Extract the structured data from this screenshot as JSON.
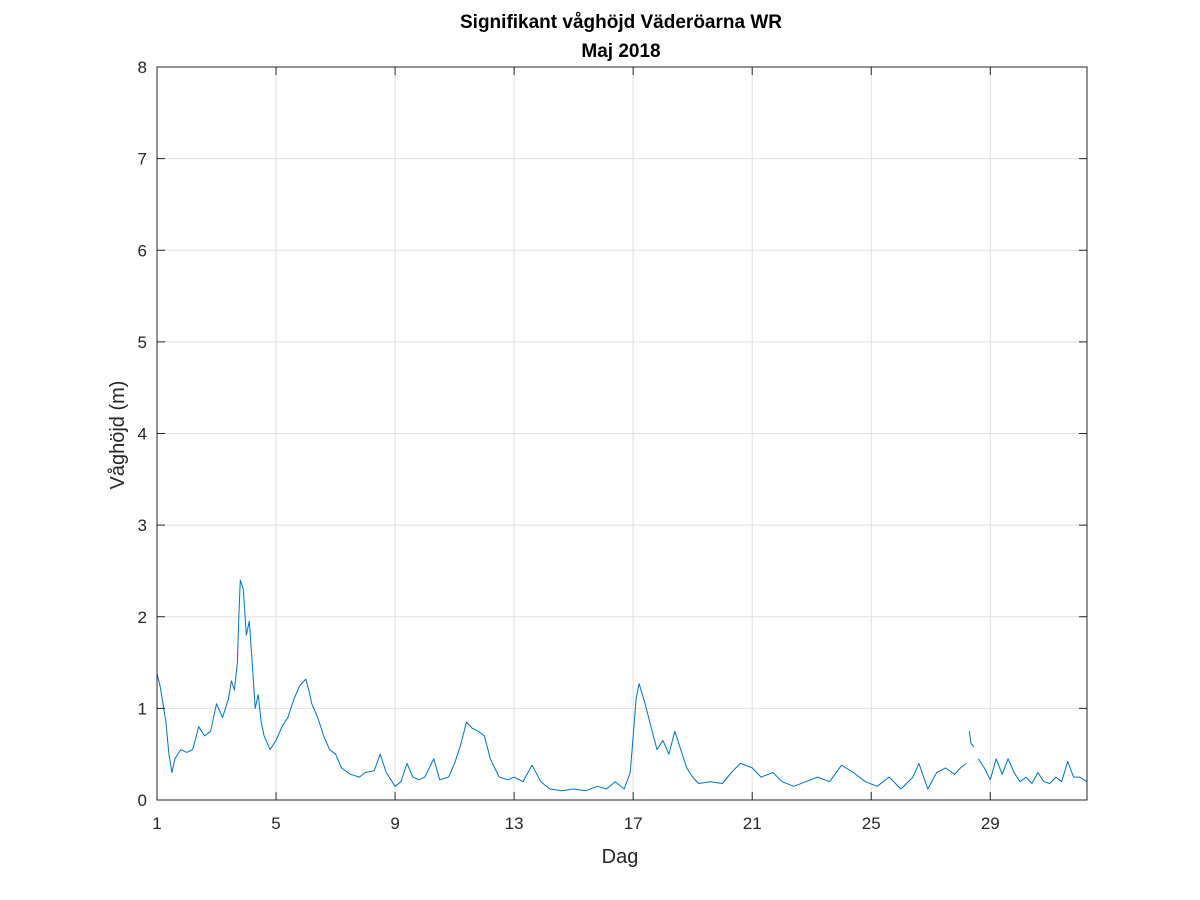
{
  "chart_data": {
    "type": "line",
    "title": "Signifikant våghöjd Väderöarna WR",
    "subtitle": "Maj 2018",
    "xlabel": "Dag",
    "ylabel": "Våghöjd (m)",
    "xlim": [
      1,
      32.25
    ],
    "ylim": [
      0,
      8
    ],
    "xticks": [
      1,
      5,
      9,
      13,
      17,
      21,
      25,
      29
    ],
    "yticks": [
      0,
      1,
      2,
      3,
      4,
      5,
      6,
      7,
      8
    ],
    "grid": true,
    "line_color": "#0072BD",
    "series": [
      {
        "segments": [
          [
            [
              1.0,
              1.38
            ],
            [
              1.1,
              1.25
            ],
            [
              1.2,
              1.05
            ],
            [
              1.3,
              0.85
            ],
            [
              1.4,
              0.5
            ],
            [
              1.5,
              0.3
            ],
            [
              1.6,
              0.45
            ],
            [
              1.8,
              0.55
            ],
            [
              2.0,
              0.52
            ],
            [
              2.2,
              0.55
            ],
            [
              2.4,
              0.8
            ],
            [
              2.6,
              0.7
            ],
            [
              2.8,
              0.75
            ],
            [
              3.0,
              1.05
            ],
            [
              3.2,
              0.9
            ],
            [
              3.4,
              1.1
            ],
            [
              3.5,
              1.3
            ],
            [
              3.6,
              1.2
            ],
            [
              3.7,
              1.5
            ],
            [
              3.75,
              2.0
            ],
            [
              3.8,
              2.4
            ],
            [
              3.9,
              2.3
            ],
            [
              4.0,
              1.8
            ],
            [
              4.1,
              1.95
            ],
            [
              4.2,
              1.5
            ],
            [
              4.3,
              1.0
            ],
            [
              4.4,
              1.15
            ],
            [
              4.5,
              0.85
            ],
            [
              4.6,
              0.7
            ],
            [
              4.8,
              0.55
            ],
            [
              5.0,
              0.65
            ],
            [
              5.2,
              0.8
            ],
            [
              5.4,
              0.9
            ],
            [
              5.6,
              1.1
            ],
            [
              5.8,
              1.25
            ],
            [
              6.0,
              1.32
            ],
            [
              6.1,
              1.2
            ],
            [
              6.2,
              1.05
            ],
            [
              6.4,
              0.9
            ],
            [
              6.6,
              0.7
            ],
            [
              6.8,
              0.55
            ],
            [
              7.0,
              0.5
            ],
            [
              7.2,
              0.35
            ],
            [
              7.5,
              0.28
            ],
            [
              7.8,
              0.25
            ],
            [
              8.0,
              0.3
            ],
            [
              8.3,
              0.32
            ],
            [
              8.5,
              0.5
            ],
            [
              8.7,
              0.3
            ],
            [
              9.0,
              0.15
            ],
            [
              9.2,
              0.2
            ],
            [
              9.4,
              0.4
            ],
            [
              9.6,
              0.25
            ],
            [
              9.8,
              0.22
            ],
            [
              10.0,
              0.25
            ],
            [
              10.3,
              0.45
            ],
            [
              10.5,
              0.22
            ],
            [
              10.8,
              0.25
            ],
            [
              11.0,
              0.4
            ],
            [
              11.2,
              0.6
            ],
            [
              11.4,
              0.85
            ],
            [
              11.6,
              0.78
            ],
            [
              11.8,
              0.75
            ],
            [
              12.0,
              0.7
            ],
            [
              12.2,
              0.45
            ],
            [
              12.5,
              0.25
            ],
            [
              12.8,
              0.22
            ],
            [
              13.0,
              0.25
            ],
            [
              13.3,
              0.2
            ],
            [
              13.6,
              0.38
            ],
            [
              13.9,
              0.2
            ],
            [
              14.2,
              0.12
            ],
            [
              14.6,
              0.1
            ],
            [
              15.0,
              0.12
            ],
            [
              15.4,
              0.1
            ],
            [
              15.8,
              0.15
            ],
            [
              16.1,
              0.12
            ],
            [
              16.4,
              0.2
            ],
            [
              16.7,
              0.12
            ],
            [
              16.9,
              0.3
            ],
            [
              17.0,
              0.7
            ],
            [
              17.1,
              1.1
            ],
            [
              17.2,
              1.27
            ],
            [
              17.4,
              1.05
            ],
            [
              17.6,
              0.8
            ],
            [
              17.8,
              0.55
            ],
            [
              18.0,
              0.65
            ],
            [
              18.2,
              0.5
            ],
            [
              18.4,
              0.75
            ],
            [
              18.6,
              0.55
            ],
            [
              18.8,
              0.35
            ],
            [
              19.0,
              0.25
            ],
            [
              19.2,
              0.18
            ],
            [
              19.6,
              0.2
            ],
            [
              20.0,
              0.18
            ],
            [
              20.3,
              0.3
            ],
            [
              20.6,
              0.4
            ],
            [
              21.0,
              0.35
            ],
            [
              21.3,
              0.25
            ],
            [
              21.7,
              0.3
            ],
            [
              22.0,
              0.2
            ],
            [
              22.4,
              0.15
            ],
            [
              22.8,
              0.2
            ],
            [
              23.2,
              0.25
            ],
            [
              23.6,
              0.2
            ],
            [
              24.0,
              0.38
            ],
            [
              24.4,
              0.3
            ],
            [
              24.8,
              0.2
            ],
            [
              25.2,
              0.15
            ],
            [
              25.6,
              0.25
            ],
            [
              26.0,
              0.12
            ],
            [
              26.4,
              0.25
            ],
            [
              26.6,
              0.4
            ],
            [
              26.9,
              0.12
            ],
            [
              27.2,
              0.3
            ],
            [
              27.5,
              0.35
            ],
            [
              27.8,
              0.28
            ],
            [
              28.0,
              0.35
            ],
            [
              28.2,
              0.4
            ]
          ],
          [
            [
              28.3,
              0.75
            ],
            [
              28.35,
              0.62
            ],
            [
              28.45,
              0.58
            ]
          ],
          [
            [
              28.6,
              0.45
            ],
            [
              28.8,
              0.35
            ],
            [
              29.0,
              0.22
            ],
            [
              29.2,
              0.45
            ],
            [
              29.4,
              0.28
            ],
            [
              29.6,
              0.45
            ],
            [
              29.8,
              0.3
            ],
            [
              30.0,
              0.2
            ],
            [
              30.2,
              0.25
            ],
            [
              30.4,
              0.18
            ],
            [
              30.6,
              0.3
            ],
            [
              30.8,
              0.2
            ],
            [
              31.0,
              0.18
            ],
            [
              31.2,
              0.25
            ],
            [
              31.4,
              0.2
            ],
            [
              31.6,
              0.42
            ],
            [
              31.8,
              0.25
            ],
            [
              32.0,
              0.25
            ],
            [
              32.25,
              0.2
            ]
          ]
        ]
      }
    ]
  }
}
